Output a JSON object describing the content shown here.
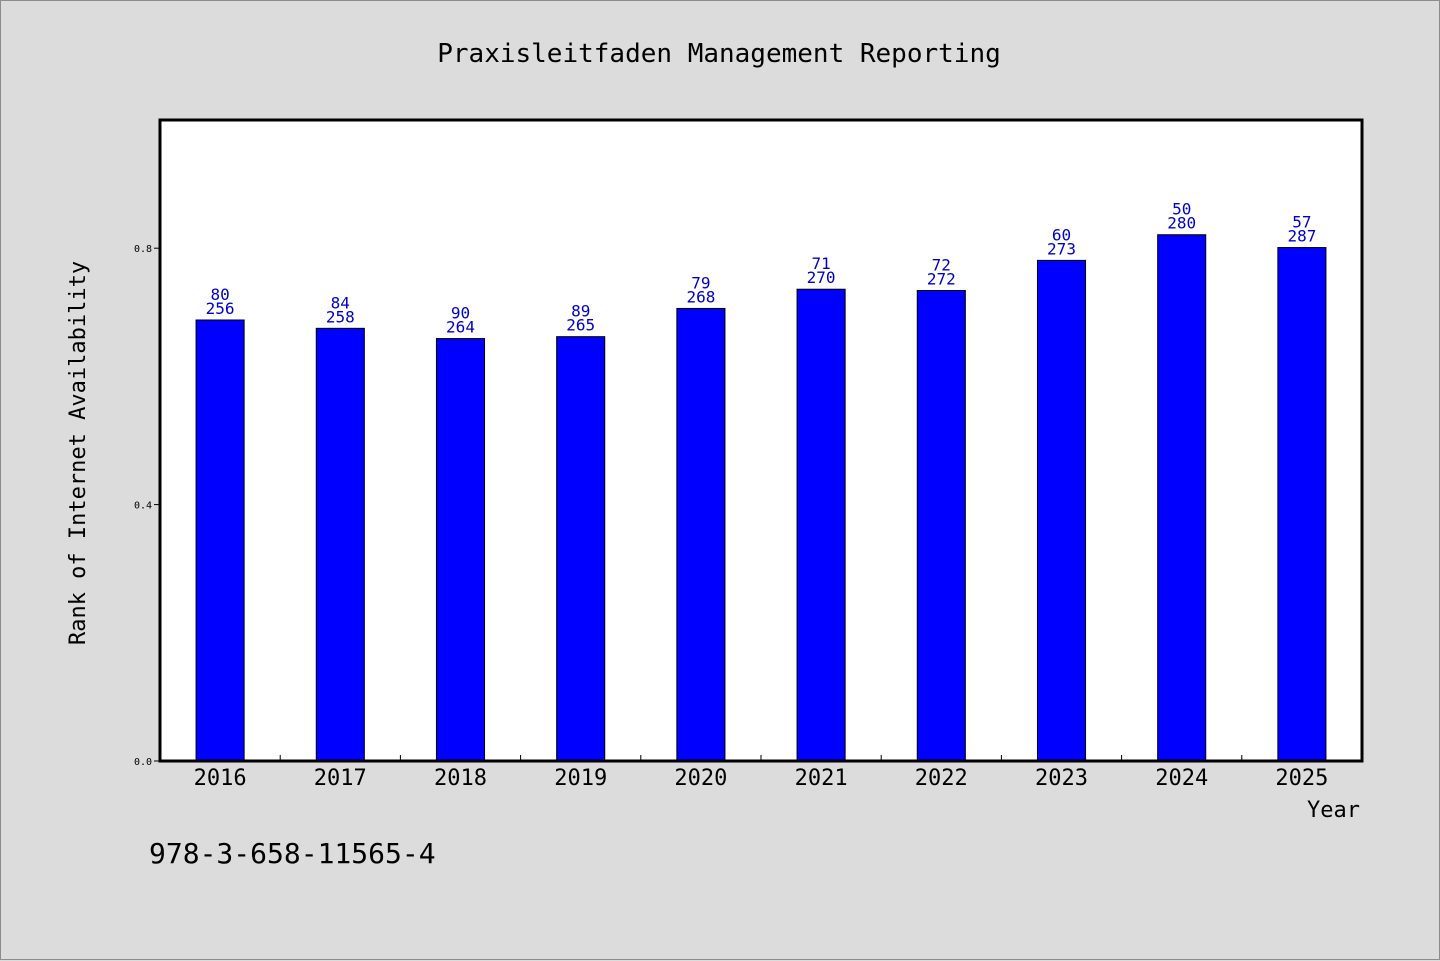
{
  "chart_data": {
    "type": "bar",
    "title": "Praxisleitfaden Management Reporting",
    "xlabel": "Year",
    "ylabel": "Rank of Internet Availability",
    "categories": [
      "2016",
      "2017",
      "2018",
      "2019",
      "2020",
      "2021",
      "2022",
      "2023",
      "2024",
      "2025"
    ],
    "values": [
      0.688,
      0.675,
      0.659,
      0.662,
      0.706,
      0.736,
      0.734,
      0.781,
      0.821,
      0.801
    ],
    "bar_labels_top": [
      "80",
      "84",
      "90",
      "89",
      "79",
      "71",
      "72",
      "60",
      "50",
      "57"
    ],
    "bar_labels_bottom": [
      "256",
      "258",
      "264",
      "265",
      "268",
      "270",
      "272",
      "273",
      "280",
      "287"
    ],
    "ylim": [
      0.0,
      1.0
    ],
    "yticks": [
      0.0,
      0.4,
      0.8
    ],
    "ytick_labels": [
      "0.0",
      "0.4",
      "0.8"
    ],
    "bar_color": "#0000ff",
    "label_color": "#0000cc",
    "background": "#dcdcdc",
    "plot_background": "#ffffff",
    "grid": false
  },
  "footer": {
    "isbn": "978-3-658-11565-4"
  }
}
